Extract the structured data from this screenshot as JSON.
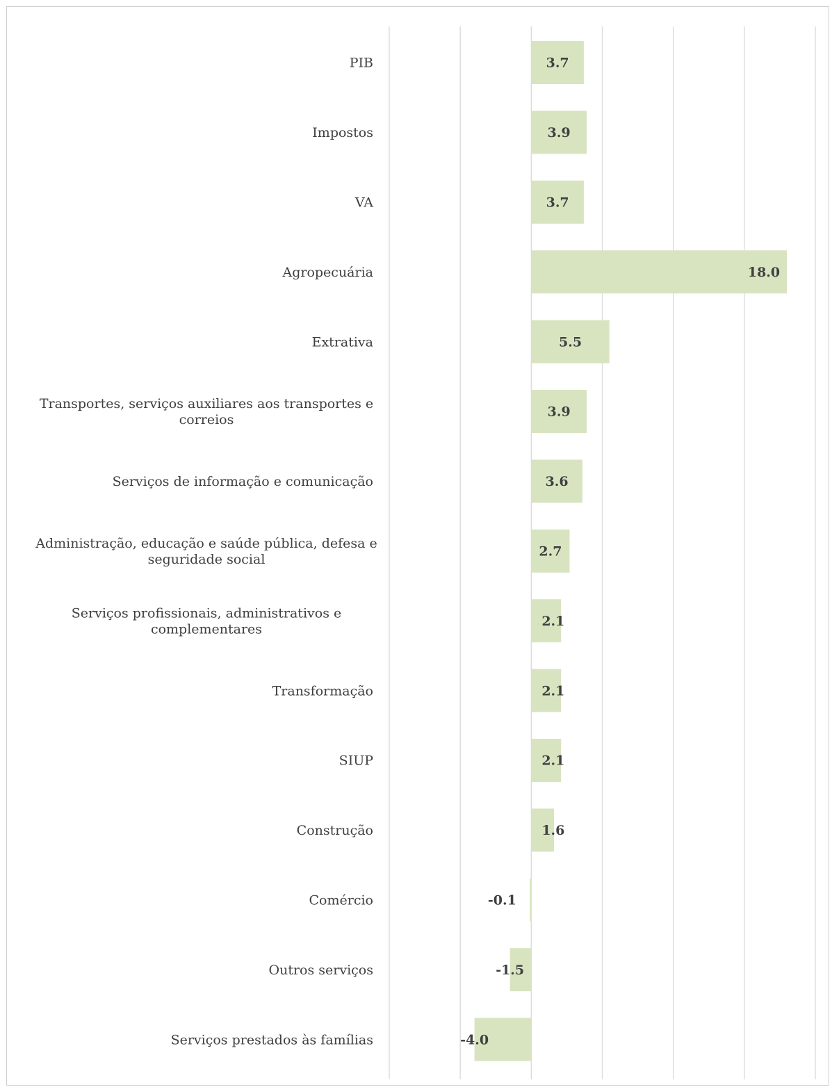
{
  "header": {
    "corner_mark": ""
  },
  "chart_data": {
    "type": "bar",
    "orientation": "horizontal",
    "categories": [
      "PIB",
      "Impostos",
      "VA",
      "Agropecuária",
      "Extrativa",
      "Transportes, serviços auxiliares aos transportes e correios",
      "Serviços de informação e comunicação",
      "Administração, educação e saúde pública, defesa e seguridade social",
      "Serviços profissionais, administrativos e complementares",
      "Transformação",
      "SIUP",
      "Construção",
      "Comércio",
      "Outros serviços",
      "Serviços prestados às famílias"
    ],
    "category_label_lines": [
      [
        "PIB"
      ],
      [
        "Impostos"
      ],
      [
        "VA"
      ],
      [
        "Agropecuária"
      ],
      [
        "Extrativa"
      ],
      [
        "Transportes, serviços auxiliares aos transportes e",
        "correios"
      ],
      [
        "Serviços de informação e comunicação"
      ],
      [
        "Administração, educação e saúde pública, defesa e",
        "seguridade social"
      ],
      [
        "Serviços profissionais, administrativos e",
        "complementares"
      ],
      [
        "Transformação"
      ],
      [
        "SIUP"
      ],
      [
        "Construção"
      ],
      [
        "Comércio"
      ],
      [
        "Outros serviços"
      ],
      [
        "Serviços prestados às famílias"
      ]
    ],
    "values": [
      3.7,
      3.9,
      3.7,
      18.0,
      5.5,
      3.9,
      3.6,
      2.7,
      2.1,
      2.1,
      2.1,
      1.6,
      -0.1,
      -1.5,
      -4.0
    ],
    "value_labels": [
      "3.7",
      "3.9",
      "3.7",
      "18.0",
      "5.5",
      "3.9",
      "3.6",
      "2.7",
      "2.1",
      "2.1",
      "2.1",
      "1.6",
      "-0.1",
      "-1.5",
      "-4.0"
    ],
    "xlim": [
      -10,
      20
    ],
    "gridline_step": 5,
    "grid": true,
    "tick_labels_visible": false,
    "title": "",
    "xlabel": "",
    "ylabel": "",
    "legend": "none",
    "colors": {
      "bar": "#d8e4c0",
      "grid": "#d9d9d9",
      "label": "#404040",
      "frame": "#cfcfcf"
    }
  }
}
